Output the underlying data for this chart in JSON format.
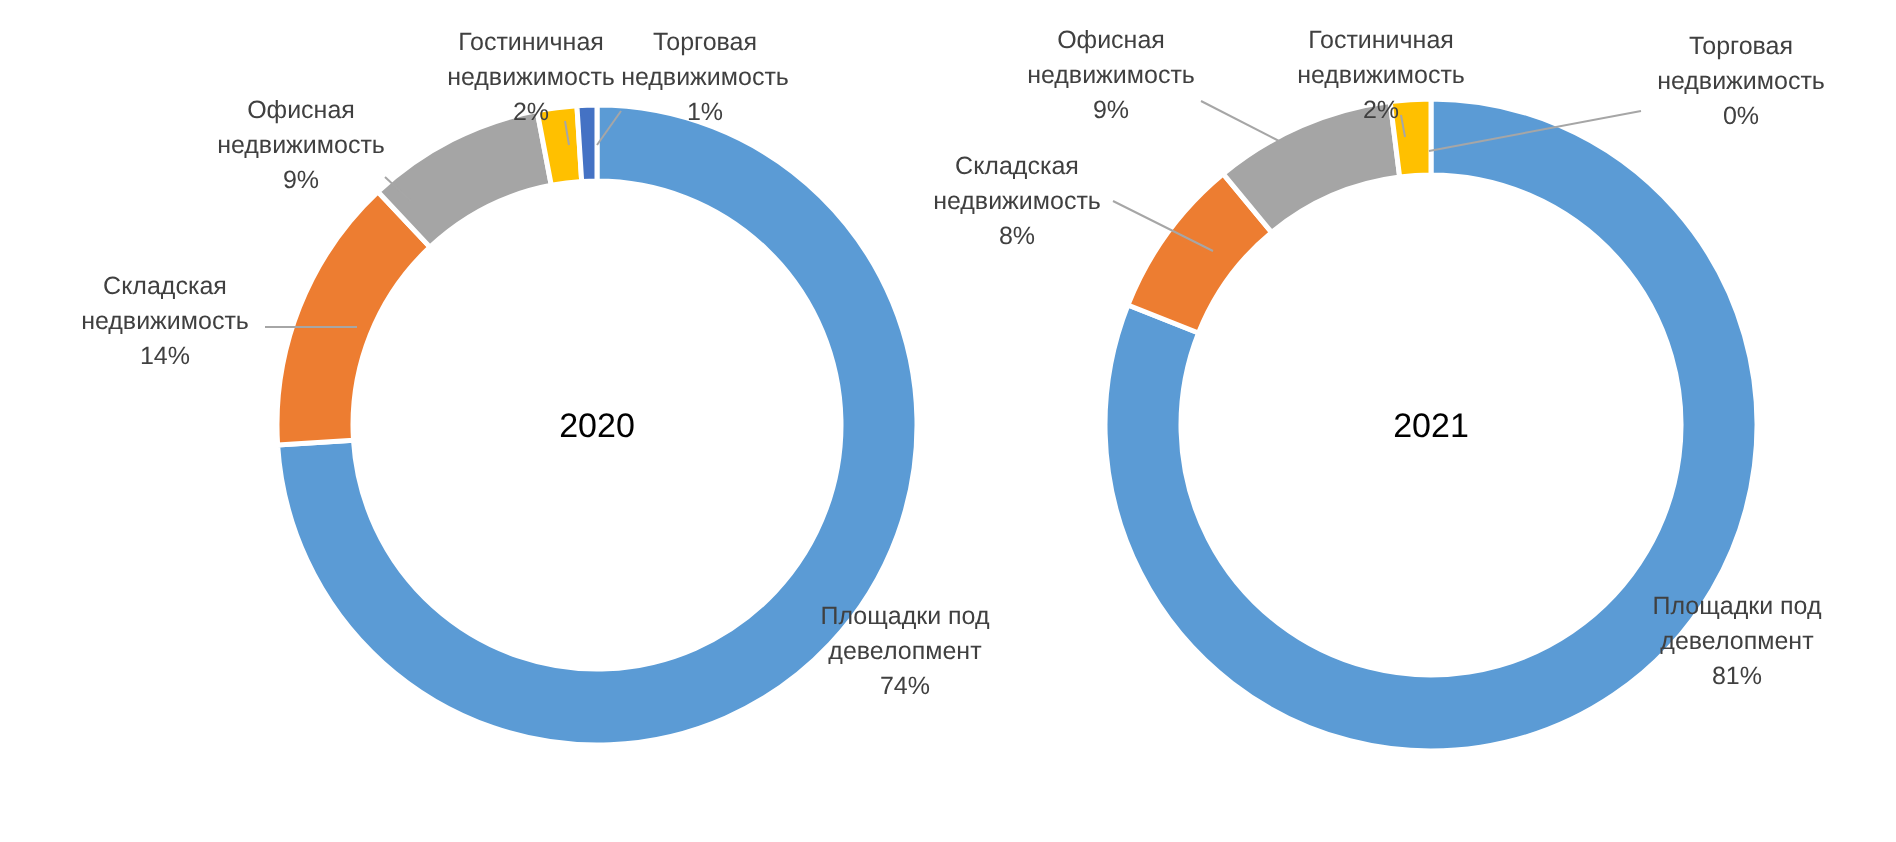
{
  "chart_data": [
    {
      "type": "donut",
      "title": "2020",
      "categories": [
        "Площадки под девелопмент",
        "Складская недвижимость",
        "Офисная недвижимость",
        "Гостиничная недвижимость",
        "Торговая недвижимость"
      ],
      "values": [
        74,
        14,
        9,
        2,
        1
      ],
      "value_labels": [
        "74%",
        "14%",
        "9%",
        "2%",
        "1%"
      ],
      "colors": [
        "#5b9bd5",
        "#ed7d31",
        "#a5a5a5",
        "#ffc000",
        "#4472c4"
      ]
    },
    {
      "type": "donut",
      "title": "2021",
      "categories": [
        "Площадки под девелопмент",
        "Складская недвижимость",
        "Офисная недвижимость",
        "Гостиничная недвижимость",
        "Торговая недвижимость"
      ],
      "values": [
        81,
        8,
        9,
        2,
        0
      ],
      "value_labels": [
        "81%",
        "8%",
        "9%",
        "2%",
        "0%"
      ],
      "colors": [
        "#5b9bd5",
        "#ed7d31",
        "#a5a5a5",
        "#ffc000",
        "#4472c4"
      ]
    }
  ]
}
